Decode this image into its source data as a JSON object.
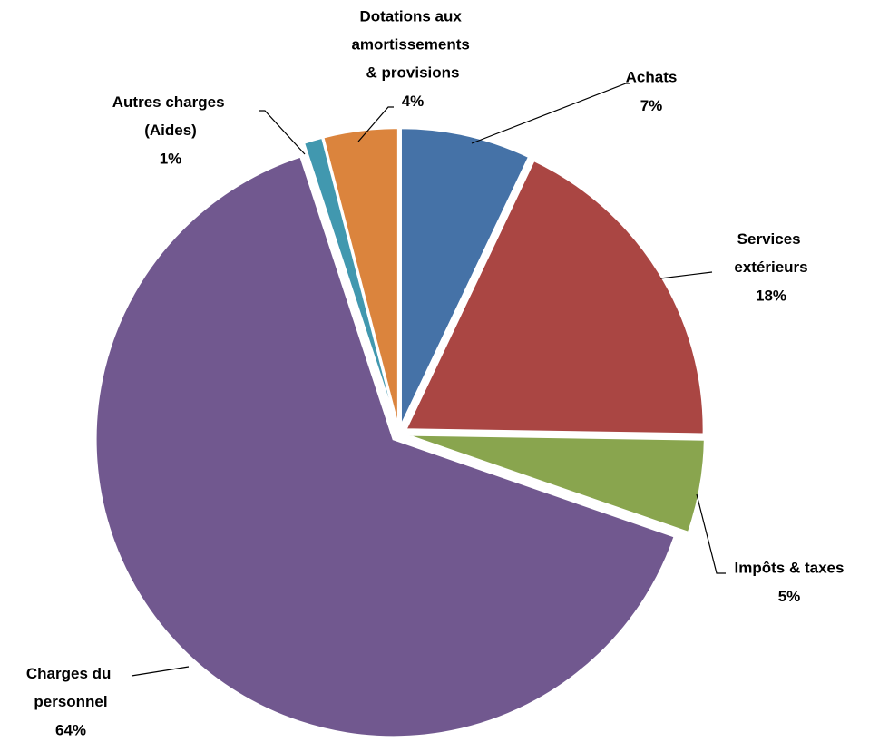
{
  "chart_data": {
    "type": "pie",
    "categories": [
      "Achats",
      "Services extérieurs",
      "Impôts & taxes",
      "Charges du personnel",
      "Autres charges (Aides)",
      "Dotations aux amortissements & provisions"
    ],
    "values": [
      7,
      18,
      5,
      64,
      1,
      4
    ],
    "value_labels": [
      "7%",
      "18%",
      "5%",
      "64%",
      "1%",
      "4%"
    ],
    "colors": [
      "#4572a7",
      "#aa4643",
      "#89a54e",
      "#71588f",
      "#4198af",
      "#db843d"
    ]
  }
}
